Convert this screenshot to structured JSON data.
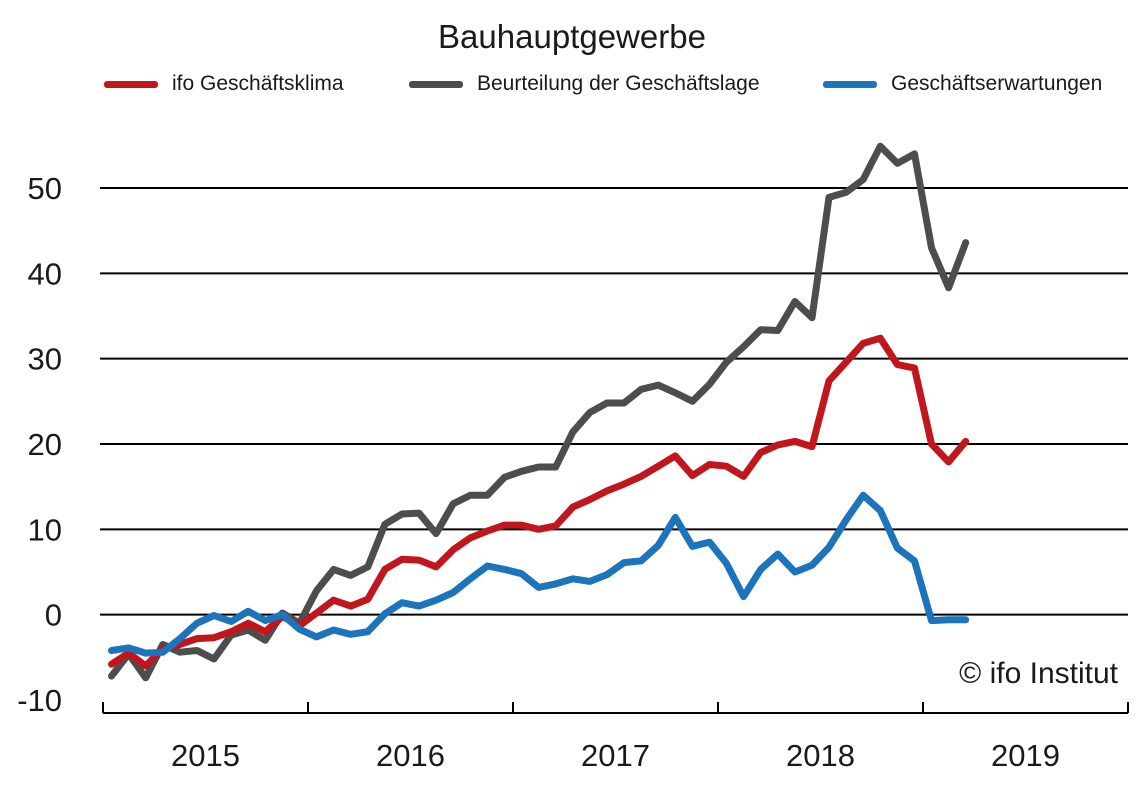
{
  "chart_data": {
    "type": "line",
    "title": "Bauhauptgewerbe",
    "xlabel": "",
    "ylabel": "",
    "ylim": [
      -10,
      55
    ],
    "yticks": [
      -10,
      0,
      10,
      20,
      30,
      40,
      50
    ],
    "ytick_labels": [
      "-10",
      "0",
      "10",
      "20",
      "30",
      "40",
      "50"
    ],
    "xticks": [
      "2015",
      "2016",
      "2017",
      "2018",
      "2019"
    ],
    "x_start": "2015-01",
    "grid": "horizontal",
    "legend_position": "top",
    "series": [
      {
        "name": "ifo Geschäftsklima",
        "color": "#c0161c",
        "values": [
          -5.8,
          -4.5,
          -6.0,
          -4.0,
          -3.5,
          -2.8,
          -2.7,
          -2.0,
          -1.0,
          -2.0,
          -0.2,
          -1.3,
          0.2,
          1.7,
          1.0,
          1.8,
          5.3,
          6.5,
          6.4,
          5.6,
          7.6,
          9.0,
          9.8,
          10.5,
          10.5,
          10.0,
          10.4,
          12.6,
          13.5,
          14.5,
          15.3,
          16.2,
          17.4,
          18.6,
          16.3,
          17.6,
          17.4,
          16.2,
          19.0,
          19.9,
          20.3,
          19.7,
          27.4,
          29.6,
          31.8,
          32.4,
          29.3,
          28.9,
          20.0,
          17.9,
          20.3
        ]
      },
      {
        "name": "Beurteilung der Geschäftslage",
        "color": "#4d4d4d",
        "values": [
          -7.2,
          -4.6,
          -7.4,
          -3.5,
          -4.4,
          -4.2,
          -5.2,
          -2.4,
          -1.8,
          -3.0,
          0.2,
          -1.0,
          2.8,
          5.3,
          4.6,
          5.6,
          10.6,
          11.8,
          11.9,
          9.5,
          13.0,
          14.0,
          14.0,
          16.1,
          16.8,
          17.3,
          17.3,
          21.4,
          23.7,
          24.8,
          24.8,
          26.4,
          26.9,
          26.0,
          25.0,
          27.0,
          29.6,
          31.4,
          33.4,
          33.3,
          36.7,
          34.8,
          48.9,
          49.5,
          51.0,
          54.9,
          52.9,
          54.0,
          43.0,
          38.3,
          43.6
        ]
      },
      {
        "name": "Geschäftserwartungen",
        "color": "#1c74bc",
        "values": [
          -4.2,
          -3.9,
          -4.5,
          -4.4,
          -2.8,
          -1.0,
          -0.1,
          -0.8,
          0.4,
          -0.7,
          0.0,
          -1.7,
          -2.6,
          -1.8,
          -2.3,
          -2.0,
          0.1,
          1.4,
          1.0,
          1.7,
          2.6,
          4.2,
          5.7,
          5.3,
          4.8,
          3.2,
          3.6,
          4.2,
          3.9,
          4.7,
          6.1,
          6.3,
          8.1,
          11.4,
          8.0,
          8.5,
          6.0,
          2.1,
          5.3,
          7.1,
          5.0,
          5.8,
          7.9,
          11.1,
          14.0,
          12.2,
          7.8,
          6.3,
          -0.7,
          -0.6,
          -0.6
        ]
      }
    ]
  },
  "copyright": "© ifo Institut"
}
